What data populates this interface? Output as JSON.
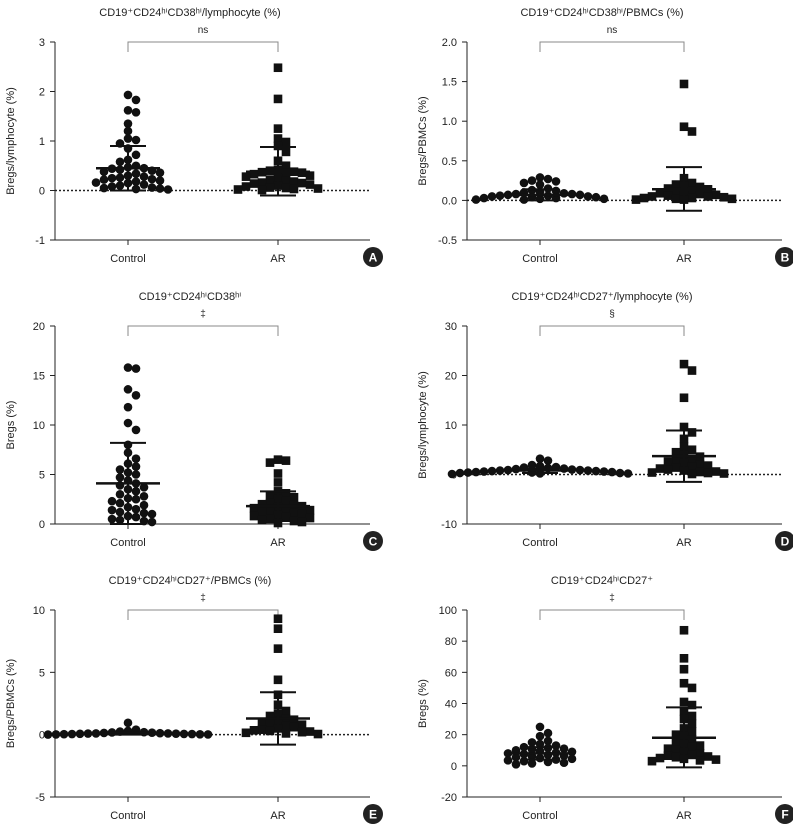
{
  "chart_data": [
    {
      "panel": "A",
      "type": "scatter",
      "title": "CD19⁺CD24ʰⁱCD38ʰⁱ/lymphocyte (%)",
      "ylabel": "Bregs/lymphocyte (%)",
      "ylim": [
        -1,
        3
      ],
      "yticks": [
        3,
        2,
        1,
        0,
        -1
      ],
      "categories": [
        "Control",
        "AR"
      ],
      "significance": "ns",
      "zero_line": true,
      "series": [
        {
          "name": "Control",
          "marker": "circle",
          "mean": 0.45,
          "sd_upper": 0.9,
          "sd_lower": 0.0,
          "values": [
            1.93,
            1.83,
            1.62,
            1.58,
            1.35,
            1.2,
            1.05,
            1.02,
            0.95,
            0.85,
            0.72,
            0.62,
            0.58,
            0.5,
            0.47,
            0.45,
            0.44,
            0.42,
            0.4,
            0.38,
            0.36,
            0.34,
            0.3,
            0.28,
            0.26,
            0.25,
            0.23,
            0.22,
            0.2,
            0.18,
            0.16,
            0.15,
            0.12,
            0.1,
            0.08,
            0.06,
            0.05,
            0.04,
            0.03,
            0.02
          ]
        },
        {
          "name": "AR",
          "marker": "square",
          "mean": 0.38,
          "sd_upper": 0.88,
          "sd_lower": -0.1,
          "values": [
            2.48,
            1.85,
            1.25,
            1.05,
            0.98,
            0.9,
            0.78,
            0.6,
            0.5,
            0.42,
            0.4,
            0.38,
            0.37,
            0.36,
            0.35,
            0.33,
            0.3,
            0.28,
            0.25,
            0.22,
            0.2,
            0.18,
            0.16,
            0.15,
            0.14,
            0.12,
            0.1,
            0.08,
            0.06,
            0.05,
            0.04,
            0.03,
            0.02,
            0.01
          ]
        }
      ]
    },
    {
      "panel": "B",
      "type": "scatter",
      "title": "CD19⁺CD24ʰⁱCD38ʰⁱ/PBMCs (%)",
      "ylabel": "Bregs/PBMCs (%)",
      "ylim": [
        -0.5,
        2.0
      ],
      "yticks": [
        2.0,
        1.5,
        1.0,
        0.5,
        0.0,
        -0.5
      ],
      "categories": [
        "Control",
        "AR"
      ],
      "significance": "ns",
      "zero_line": true,
      "series": [
        {
          "name": "Control",
          "marker": "circle",
          "mean": 0.07,
          "sd_upper": 0.14,
          "sd_lower": 0.0,
          "values": [
            0.29,
            0.27,
            0.25,
            0.24,
            0.22,
            0.2,
            0.15,
            0.13,
            0.12,
            0.11,
            0.1,
            0.09,
            0.08,
            0.08,
            0.07,
            0.07,
            0.06,
            0.06,
            0.05,
            0.05,
            0.04,
            0.04,
            0.03,
            0.03,
            0.02,
            0.02,
            0.01,
            0.01
          ]
        },
        {
          "name": "AR",
          "marker": "square",
          "mean": 0.14,
          "sd_upper": 0.42,
          "sd_lower": -0.13,
          "values": [
            1.47,
            0.93,
            0.87,
            0.28,
            0.22,
            0.2,
            0.19,
            0.17,
            0.15,
            0.14,
            0.12,
            0.11,
            0.1,
            0.09,
            0.08,
            0.07,
            0.06,
            0.05,
            0.05,
            0.04,
            0.03,
            0.03,
            0.02,
            0.02,
            0.01,
            0.01
          ]
        }
      ]
    },
    {
      "panel": "C",
      "type": "scatter",
      "title": "CD19⁺CD24ʰⁱCD38ʰⁱ",
      "ylabel": "Bregs (%)",
      "ylim": [
        0,
        20
      ],
      "yticks": [
        20,
        15,
        10,
        5,
        0
      ],
      "categories": [
        "Control",
        "AR"
      ],
      "significance": "‡",
      "zero_line": false,
      "series": [
        {
          "name": "Control",
          "marker": "circle",
          "mean": 4.1,
          "sd_upper": 8.2,
          "sd_lower": 0.0,
          "values": [
            15.8,
            15.7,
            13.6,
            13.0,
            11.8,
            10.2,
            9.5,
            8.0,
            7.2,
            6.6,
            6.1,
            5.8,
            5.5,
            5.2,
            5.0,
            4.7,
            4.4,
            4.1,
            3.9,
            3.7,
            3.5,
            3.3,
            3.0,
            2.8,
            2.6,
            2.5,
            2.3,
            2.1,
            1.9,
            1.7,
            1.5,
            1.4,
            1.2,
            1.1,
            1.0,
            0.8,
            0.7,
            0.5,
            0.4,
            0.3,
            0.2
          ]
        },
        {
          "name": "AR",
          "marker": "square",
          "mean": 1.8,
          "sd_upper": 3.3,
          "sd_lower": 0.3,
          "values": [
            6.5,
            6.4,
            6.2,
            5.1,
            4.2,
            3.3,
            3.1,
            2.9,
            2.7,
            2.5,
            2.3,
            2.1,
            2.0,
            1.9,
            1.8,
            1.7,
            1.6,
            1.5,
            1.4,
            1.3,
            1.2,
            1.1,
            1.0,
            0.9,
            0.8,
            0.7,
            0.6,
            0.5,
            0.4,
            0.3,
            0.2,
            0.1
          ]
        }
      ]
    },
    {
      "panel": "D",
      "type": "scatter",
      "title": "CD19⁺CD24ʰⁱCD27⁺/lymphocyte (%)",
      "ylabel": "Bregs/lymphocyte (%)",
      "ylim": [
        -10,
        30
      ],
      "yticks": [
        30,
        20,
        10,
        0,
        -10
      ],
      "categories": [
        "Control",
        "AR"
      ],
      "significance": "§",
      "zero_line": true,
      "series": [
        {
          "name": "Control",
          "marker": "circle",
          "mean": 0.8,
          "sd_upper": 1.2,
          "sd_lower": 0.3,
          "values": [
            3.2,
            2.8,
            1.9,
            1.7,
            1.5,
            1.4,
            1.3,
            1.2,
            1.1,
            1.0,
            0.9,
            0.9,
            0.8,
            0.8,
            0.7,
            0.7,
            0.6,
            0.6,
            0.5,
            0.5,
            0.4,
            0.4,
            0.3,
            0.3,
            0.2,
            0.2,
            0.1
          ]
        },
        {
          "name": "AR",
          "marker": "square",
          "mean": 3.7,
          "sd_upper": 8.9,
          "sd_lower": -1.5,
          "values": [
            22.3,
            21.0,
            15.5,
            9.6,
            8.5,
            7.2,
            5.6,
            5.0,
            4.5,
            4.0,
            3.6,
            3.2,
            2.9,
            2.6,
            2.3,
            2.0,
            1.8,
            1.6,
            1.4,
            1.2,
            1.0,
            0.8,
            0.6,
            0.5,
            0.4,
            0.3,
            0.2,
            0.1
          ]
        }
      ]
    },
    {
      "panel": "E",
      "type": "scatter",
      "title": "CD19⁺CD24ʰⁱCD27⁺/PBMCs (%)",
      "ylabel": "Bregs/PBMCs (%)",
      "ylim": [
        -5,
        10
      ],
      "yticks": [
        10,
        5,
        0,
        -5
      ],
      "categories": [
        "Control",
        "AR"
      ],
      "significance": "‡",
      "zero_line": true,
      "series": [
        {
          "name": "Control",
          "marker": "circle",
          "mean": 0.1,
          "sd_upper": 0.2,
          "sd_lower": 0.0,
          "values": [
            0.95,
            0.4,
            0.3,
            0.25,
            0.2,
            0.18,
            0.16,
            0.14,
            0.12,
            0.1,
            0.1,
            0.09,
            0.08,
            0.07,
            0.06,
            0.05,
            0.05,
            0.04,
            0.03,
            0.02,
            0.02,
            0.01
          ]
        },
        {
          "name": "AR",
          "marker": "square",
          "mean": 1.3,
          "sd_upper": 3.4,
          "sd_lower": -0.8,
          "values": [
            9.3,
            8.5,
            6.9,
            4.4,
            3.2,
            2.4,
            1.9,
            1.7,
            1.5,
            1.3,
            1.2,
            1.1,
            1.0,
            0.9,
            0.8,
            0.7,
            0.6,
            0.5,
            0.4,
            0.35,
            0.3,
            0.25,
            0.2,
            0.15,
            0.1,
            0.05
          ]
        }
      ]
    },
    {
      "panel": "F",
      "type": "scatter",
      "title": "CD19⁺CD24ʰⁱCD27⁺",
      "ylabel": "Bregs (%)",
      "ylim": [
        -20,
        100
      ],
      "yticks": [
        100,
        80,
        60,
        40,
        20,
        0,
        -20
      ],
      "categories": [
        "Control",
        "AR"
      ],
      "significance": "‡",
      "zero_line": false,
      "series": [
        {
          "name": "Control",
          "marker": "circle",
          "mean": 8,
          "sd_upper": 12,
          "sd_lower": 4,
          "values": [
            25,
            21,
            19,
            16,
            15,
            14,
            13,
            12,
            11.5,
            11,
            10.5,
            10,
            9.5,
            9,
            8.5,
            8,
            7.5,
            7,
            6.5,
            6,
            5.5,
            5,
            4.5,
            4,
            3.5,
            3,
            2.5,
            2,
            1.5,
            1
          ]
        },
        {
          "name": "AR",
          "marker": "square",
          "mean": 18,
          "sd_upper": 37.5,
          "sd_lower": -1,
          "values": [
            87,
            69,
            62,
            53,
            50,
            41,
            39,
            35,
            32,
            30,
            27,
            24,
            22,
            20,
            19,
            17,
            15,
            14,
            13,
            12,
            11,
            10,
            9,
            8,
            7,
            6.5,
            6,
            5.5,
            5,
            4.5,
            4,
            3.5,
            3
          ]
        }
      ]
    }
  ]
}
